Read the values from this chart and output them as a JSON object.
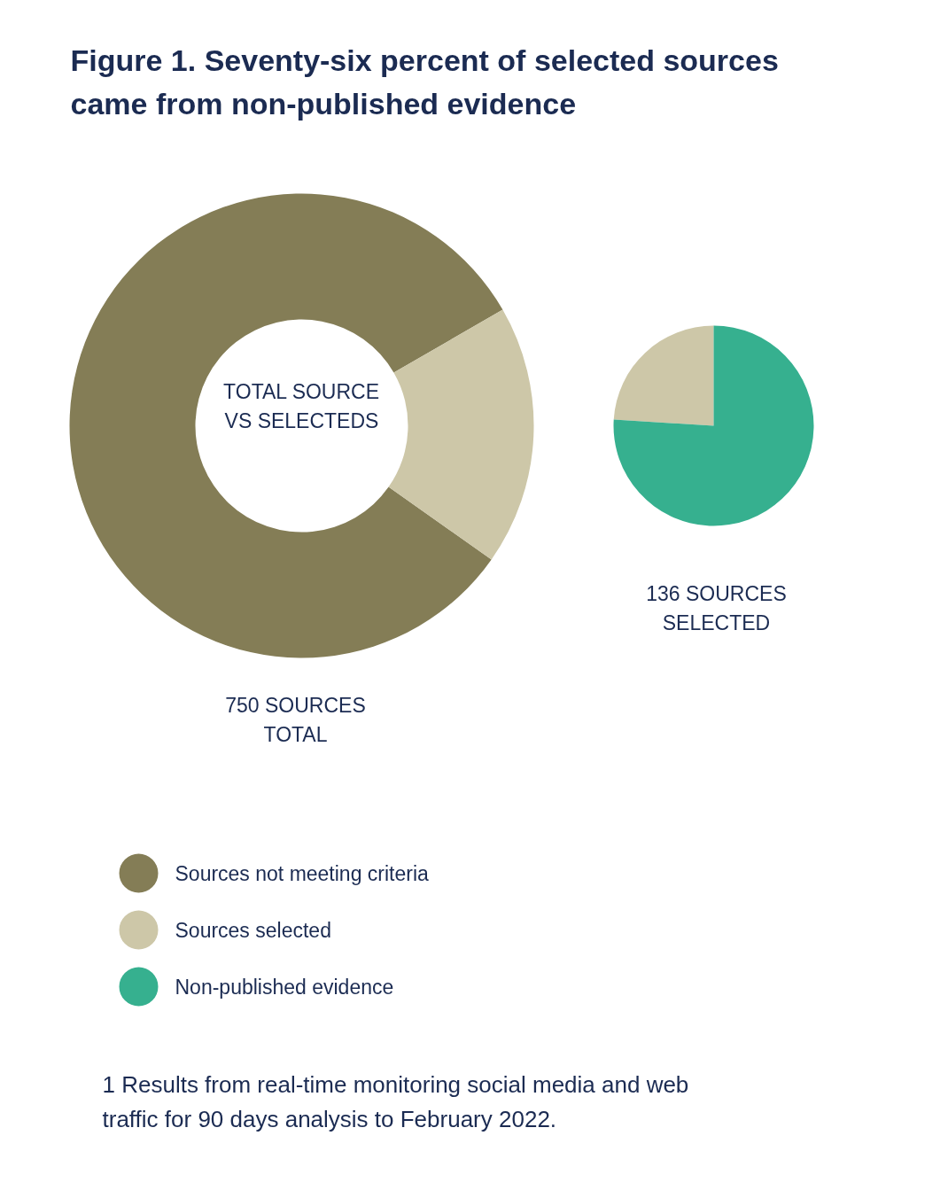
{
  "chart_data": [
    {
      "type": "donut",
      "title": "Figure 1. Seventy-six percent of selected sources came from non-published evidence",
      "categories": [
        "Sources not meeting criteria",
        "Sources selected"
      ],
      "values": [
        81.9,
        18.1
      ],
      "colors": [
        "#847d56",
        "#cdc7a8"
      ],
      "annotations": [
        "TOTAL SOURCE VS SELECTEDS",
        "750 SOURCES TOTAL",
        "1 Results from real-time monitoring social media and web traffic for 90 days analysis to February 2022."
      ],
      "legend": "bottom left"
    },
    {
      "type": "pie",
      "categories": [
        null,
        "Non-published evidence"
      ],
      "values": [
        24,
        76
      ],
      "colors": [
        "#cdc7a8",
        "#36b08f"
      ],
      "annotations": [
        "136 SOURCES SELECTED"
      ]
    }
  ]
}
